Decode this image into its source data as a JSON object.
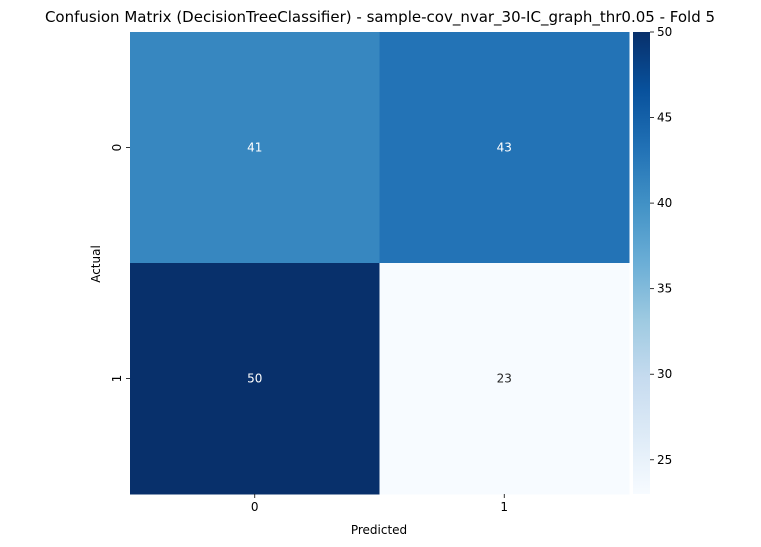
{
  "chart_data": {
    "type": "heatmap",
    "title": "Confusion Matrix (DecisionTreeClassifier) - sample-cov_nvar_30-IC_graph_thr0.05 - Fold 5",
    "xlabel": "Predicted",
    "ylabel": "Actual",
    "x_categories": [
      "0",
      "1"
    ],
    "y_categories": [
      "0",
      "1"
    ],
    "values": [
      [
        41,
        43
      ],
      [
        50,
        23
      ]
    ],
    "colorbar": {
      "colormap": "Blues",
      "vmin": 23,
      "vmax": 50,
      "ticks": [
        25,
        30,
        35,
        40,
        45,
        50
      ]
    },
    "legend": "colorbar-right"
  }
}
